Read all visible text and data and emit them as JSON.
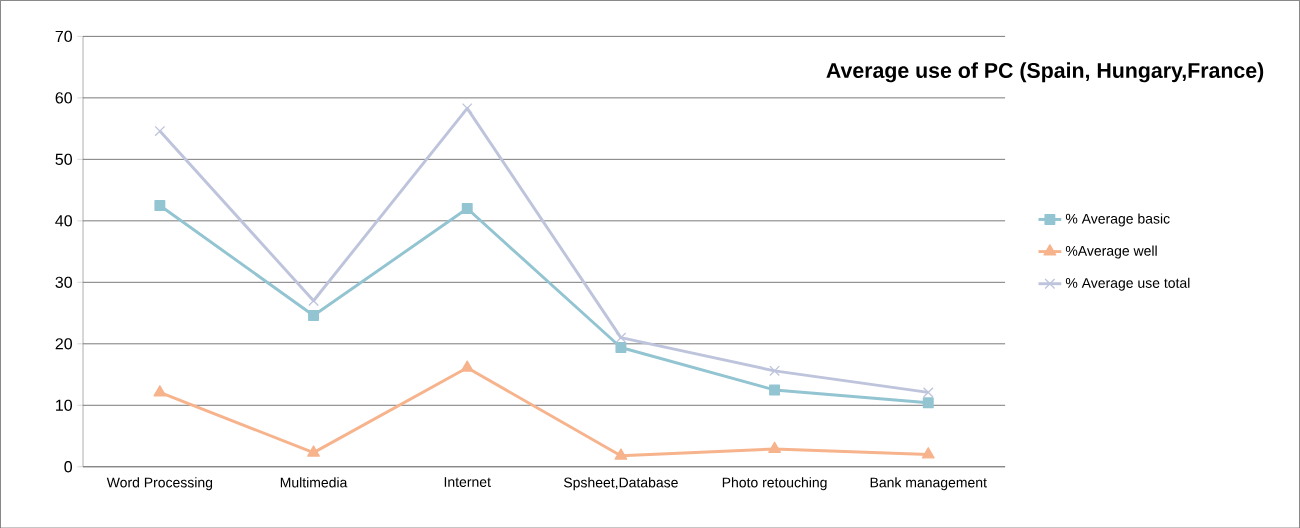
{
  "chart_data": {
    "type": "line",
    "title": "Average use of PC (Spain, Hungary,France)",
    "categories": [
      "Word Processing",
      "Multimedia",
      "Internet",
      "Spsheet,Database",
      "Photo retouching",
      "Bank management"
    ],
    "series": [
      {
        "name": "% Average basic",
        "color": "#93c4d2",
        "marker": "square",
        "values": [
          42.5,
          24.6,
          42.0,
          19.4,
          12.5,
          10.4
        ]
      },
      {
        "name": "%Average well",
        "color": "#f6b38c",
        "marker": "triangle",
        "values": [
          12.1,
          2.3,
          16.1,
          1.8,
          2.9,
          2.0
        ]
      },
      {
        "name": "% Average use total",
        "color": "#bec4dc",
        "marker": "cross",
        "values": [
          54.6,
          27.0,
          58.3,
          21.0,
          15.6,
          12.1
        ]
      }
    ],
    "ylim": [
      0,
      70
    ],
    "yticks": [
      0,
      10,
      20,
      30,
      40,
      50,
      60,
      70
    ],
    "grid": "y",
    "legend": "right"
  }
}
